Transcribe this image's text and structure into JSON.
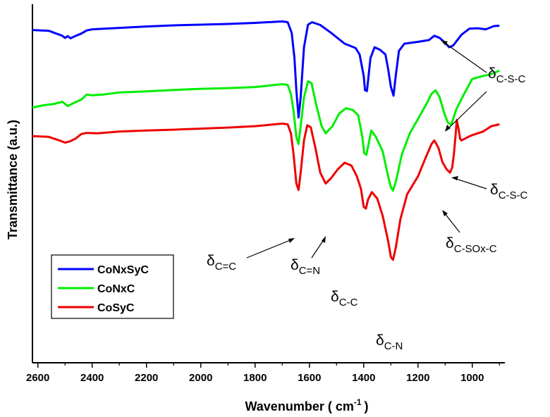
{
  "chart_data": {
    "type": "line",
    "xlabel": "Wavenumber ( cm",
    "xlabel_sup": "-1",
    "xlabel_close": ")",
    "ylabel": "Transmittance (a.u.)",
    "xlim": [
      2620,
      880
    ],
    "x_reversed": true,
    "xticks": [
      2600,
      2400,
      2200,
      2000,
      1800,
      1600,
      1400,
      1200,
      1000
    ],
    "y_ticks_shown": false,
    "ylim": [
      0,
      100
    ],
    "legend_position": "bottom-left",
    "series": [
      {
        "name": "CoNxSyC",
        "color": "#0000ff",
        "points": [
          [
            2620,
            92.8
          ],
          [
            2560,
            92.6
          ],
          [
            2510,
            91.2
          ],
          [
            2500,
            90.6
          ],
          [
            2490,
            91.1
          ],
          [
            2480,
            90.5
          ],
          [
            2460,
            91.2
          ],
          [
            2440,
            91.8
          ],
          [
            2420,
            92.7
          ],
          [
            2400,
            93.0
          ],
          [
            2300,
            93.4
          ],
          [
            2200,
            93.8
          ],
          [
            2100,
            94.1
          ],
          [
            2000,
            94.3
          ],
          [
            1900,
            94.5
          ],
          [
            1800,
            94.8
          ],
          [
            1700,
            95.2
          ],
          [
            1680,
            95.0
          ],
          [
            1665,
            92.0
          ],
          [
            1655,
            85.0
          ],
          [
            1648,
            76.0
          ],
          [
            1640,
            68.4
          ],
          [
            1632,
            74.0
          ],
          [
            1620,
            88.0
          ],
          [
            1605,
            94.3
          ],
          [
            1590,
            95.0
          ],
          [
            1560,
            94.2
          ],
          [
            1520,
            92.0
          ],
          [
            1470,
            89.0
          ],
          [
            1430,
            87.8
          ],
          [
            1415,
            86.0
          ],
          [
            1400,
            80.0
          ],
          [
            1395,
            76.0
          ],
          [
            1388,
            75.8
          ],
          [
            1382,
            80.0
          ],
          [
            1375,
            85.0
          ],
          [
            1360,
            88.0
          ],
          [
            1340,
            87.3
          ],
          [
            1320,
            86.0
          ],
          [
            1310,
            82.0
          ],
          [
            1300,
            77.0
          ],
          [
            1290,
            74.5
          ],
          [
            1282,
            80.0
          ],
          [
            1270,
            87.0
          ],
          [
            1250,
            89.0
          ],
          [
            1200,
            89.5
          ],
          [
            1160,
            90.0
          ],
          [
            1140,
            91.2
          ],
          [
            1120,
            90.6
          ],
          [
            1100,
            89.2
          ],
          [
            1085,
            88.0
          ],
          [
            1070,
            88.5
          ],
          [
            1040,
            91.5
          ],
          [
            1010,
            93.2
          ],
          [
            980,
            93.3
          ],
          [
            950,
            93.0
          ],
          [
            920,
            93.9
          ],
          [
            900,
            94.0
          ]
        ]
      },
      {
        "name": "CoNxC",
        "color": "#00ee00",
        "points": [
          [
            2620,
            71.2
          ],
          [
            2580,
            71.8
          ],
          [
            2540,
            72.2
          ],
          [
            2510,
            72.8
          ],
          [
            2490,
            71.6
          ],
          [
            2470,
            72.4
          ],
          [
            2440,
            73.4
          ],
          [
            2420,
            74.8
          ],
          [
            2400,
            74.6
          ],
          [
            2360,
            74.8
          ],
          [
            2300,
            75.4
          ],
          [
            2200,
            75.7
          ],
          [
            2100,
            76.1
          ],
          [
            2000,
            76.4
          ],
          [
            1900,
            76.6
          ],
          [
            1800,
            76.9
          ],
          [
            1700,
            77.7
          ],
          [
            1680,
            77.5
          ],
          [
            1668,
            75.0
          ],
          [
            1658,
            70.0
          ],
          [
            1648,
            63.0
          ],
          [
            1640,
            61.0
          ],
          [
            1632,
            66.0
          ],
          [
            1620,
            74.0
          ],
          [
            1605,
            78.5
          ],
          [
            1592,
            78.0
          ],
          [
            1575,
            72.0
          ],
          [
            1555,
            66.0
          ],
          [
            1540,
            64.0
          ],
          [
            1515,
            66.0
          ],
          [
            1490,
            69.5
          ],
          [
            1465,
            71.0
          ],
          [
            1440,
            70.5
          ],
          [
            1420,
            69.0
          ],
          [
            1405,
            63.0
          ],
          [
            1398,
            58.5
          ],
          [
            1390,
            58.0
          ],
          [
            1382,
            61.0
          ],
          [
            1372,
            64.8
          ],
          [
            1355,
            63.0
          ],
          [
            1330,
            59.0
          ],
          [
            1310,
            52.0
          ],
          [
            1300,
            49.0
          ],
          [
            1292,
            48.0
          ],
          [
            1280,
            51.0
          ],
          [
            1260,
            58.0
          ],
          [
            1230,
            64.0
          ],
          [
            1200,
            68.0
          ],
          [
            1170,
            72.0
          ],
          [
            1150,
            75.0
          ],
          [
            1135,
            76.0
          ],
          [
            1120,
            74.0
          ],
          [
            1105,
            70.0
          ],
          [
            1090,
            67.0
          ],
          [
            1078,
            66.4
          ],
          [
            1068,
            68.5
          ],
          [
            1060,
            70.5
          ],
          [
            1050,
            72.0
          ],
          [
            1030,
            75.0
          ],
          [
            1000,
            79.2
          ],
          [
            960,
            80.0
          ],
          [
            930,
            80.5
          ],
          [
            900,
            81.5
          ]
        ]
      },
      {
        "name": "CoSyC",
        "color": "#ee0000",
        "points": [
          [
            2620,
            63.2
          ],
          [
            2560,
            63.0
          ],
          [
            2520,
            62.0
          ],
          [
            2500,
            61.4
          ],
          [
            2480,
            61.8
          ],
          [
            2460,
            62.6
          ],
          [
            2440,
            63.8
          ],
          [
            2420,
            64.1
          ],
          [
            2380,
            64.0
          ],
          [
            2300,
            64.5
          ],
          [
            2200,
            64.8
          ],
          [
            2100,
            65.0
          ],
          [
            2000,
            65.3
          ],
          [
            1900,
            65.6
          ],
          [
            1800,
            66.0
          ],
          [
            1700,
            66.7
          ],
          [
            1680,
            66.5
          ],
          [
            1668,
            64.0
          ],
          [
            1658,
            58.0
          ],
          [
            1648,
            50.0
          ],
          [
            1640,
            48.2
          ],
          [
            1632,
            53.0
          ],
          [
            1620,
            62.0
          ],
          [
            1608,
            66.2
          ],
          [
            1595,
            65.7
          ],
          [
            1578,
            60.0
          ],
          [
            1560,
            53.0
          ],
          [
            1540,
            50.0
          ],
          [
            1520,
            51.5
          ],
          [
            1495,
            54.0
          ],
          [
            1470,
            55.8
          ],
          [
            1445,
            55.0
          ],
          [
            1425,
            52.0
          ],
          [
            1410,
            48.5
          ],
          [
            1400,
            43.5
          ],
          [
            1392,
            43.0
          ],
          [
            1384,
            45.5
          ],
          [
            1370,
            47.6
          ],
          [
            1350,
            45.8
          ],
          [
            1330,
            41.0
          ],
          [
            1310,
            34.0
          ],
          [
            1300,
            29.5
          ],
          [
            1292,
            28.7
          ],
          [
            1282,
            32.0
          ],
          [
            1265,
            40.0
          ],
          [
            1240,
            47.0
          ],
          [
            1200,
            52.0
          ],
          [
            1170,
            57.5
          ],
          [
            1150,
            61.0
          ],
          [
            1140,
            62.0
          ],
          [
            1125,
            60.0
          ],
          [
            1110,
            56.0
          ],
          [
            1095,
            54.0
          ],
          [
            1082,
            53.0
          ],
          [
            1074,
            54.5
          ],
          [
            1068,
            58.0
          ],
          [
            1062,
            63.0
          ],
          [
            1057,
            67.7
          ],
          [
            1050,
            65.0
          ],
          [
            1045,
            62.5
          ],
          [
            1040,
            62.0
          ],
          [
            1020,
            62.8
          ],
          [
            1000,
            63.5
          ],
          [
            960,
            64.5
          ],
          [
            930,
            66.0
          ],
          [
            900,
            66.5
          ]
        ]
      }
    ],
    "annotations": [
      {
        "main": "δ",
        "sub": "C-S-C"
      },
      {
        "main": "δ",
        "sub": "C-S-C"
      },
      {
        "main": "δ",
        "sub": "C=C"
      },
      {
        "main": "δ",
        "sub": "C=N"
      },
      {
        "main": "δ",
        "sub": "C-C"
      },
      {
        "main": "δ",
        "sub": "C-N"
      },
      {
        "main": "δ",
        "sub": "C-SOx-C"
      }
    ]
  }
}
